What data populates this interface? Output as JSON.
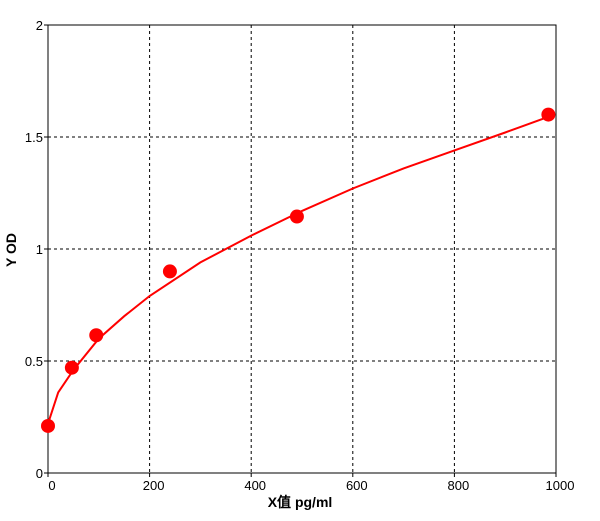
{
  "chart_data": {
    "type": "scatter",
    "xlabel": "X值 pg/ml",
    "ylabel": "Y OD",
    "xlim": [
      0,
      1000
    ],
    "ylim": [
      0,
      2
    ],
    "x_ticks": [
      0,
      200,
      400,
      600,
      800,
      1000
    ],
    "x_tick_labels": [
      "0",
      "200",
      "400",
      "600",
      "800",
      "1000"
    ],
    "y_ticks": [
      0,
      0.5,
      1,
      1.5,
      2
    ],
    "y_tick_labels": [
      "0",
      "0.5",
      "1",
      "1.5",
      "2"
    ],
    "grid": true,
    "grid_style": "dashed",
    "series": [
      {
        "points": [
          {
            "x": 0,
            "y": 0.21
          },
          {
            "x": 47,
            "y": 0.47
          },
          {
            "x": 95,
            "y": 0.615
          },
          {
            "x": 240,
            "y": 0.9
          },
          {
            "x": 490,
            "y": 1.145
          },
          {
            "x": 985,
            "y": 1.6
          }
        ],
        "marker_color": "#ff0000"
      },
      {
        "fit_curve": [
          {
            "x": 0,
            "y": 0.22
          },
          {
            "x": 20,
            "y": 0.36
          },
          {
            "x": 50,
            "y": 0.46
          },
          {
            "x": 100,
            "y": 0.6
          },
          {
            "x": 150,
            "y": 0.7
          },
          {
            "x": 200,
            "y": 0.79
          },
          {
            "x": 300,
            "y": 0.94
          },
          {
            "x": 400,
            "y": 1.06
          },
          {
            "x": 500,
            "y": 1.17
          },
          {
            "x": 600,
            "y": 1.27
          },
          {
            "x": 700,
            "y": 1.36
          },
          {
            "x": 800,
            "y": 1.44
          },
          {
            "x": 900,
            "y": 1.52
          },
          {
            "x": 985,
            "y": 1.59
          }
        ],
        "line_color": "#ff0000"
      }
    ]
  }
}
